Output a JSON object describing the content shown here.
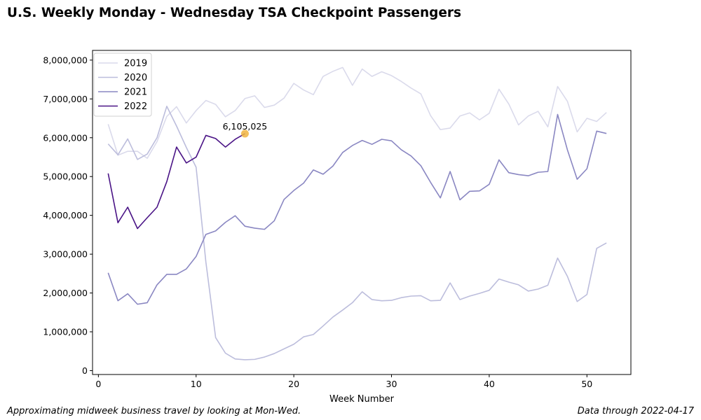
{
  "title": "U.S. Weekly Monday - Wednesday TSA Checkpoint Passengers",
  "footer": {
    "left": "Approximating midweek business travel by looking at Mon-Wed.",
    "right": "Data through 2022-04-17"
  },
  "chart_data": {
    "type": "line",
    "title": "U.S. Weekly Monday - Wednesday TSA Checkpoint Passengers",
    "xlabel": "Week Number",
    "ylabel": "",
    "xlim": [
      -0.6,
      54.5
    ],
    "ylim": [
      -100000,
      8250000
    ],
    "x_ticks": [
      0,
      10,
      20,
      30,
      40,
      50
    ],
    "x_tick_labels": [
      "0",
      "10",
      "20",
      "30",
      "40",
      "50"
    ],
    "y_ticks": [
      0,
      1000000,
      2000000,
      3000000,
      4000000,
      5000000,
      6000000,
      7000000,
      8000000
    ],
    "y_tick_labels": [
      "0",
      "1,000,000",
      "2,000,000",
      "3,000,000",
      "4,000,000",
      "5,000,000",
      "6,000,000",
      "7,000,000",
      "8,000,000"
    ],
    "grid": false,
    "legend_position": "top-left",
    "series": [
      {
        "name": "2019",
        "color": "#dadaeb",
        "x": [
          1,
          2,
          3,
          4,
          5,
          6,
          7,
          8,
          9,
          10,
          11,
          12,
          13,
          14,
          15,
          16,
          17,
          18,
          19,
          20,
          21,
          22,
          23,
          24,
          25,
          26,
          27,
          28,
          29,
          30,
          31,
          32,
          33,
          34,
          35,
          36,
          37,
          38,
          39,
          40,
          41,
          42,
          43,
          44,
          45,
          46,
          47,
          48,
          49,
          50,
          51,
          52
        ],
        "values": [
          6350000,
          5550000,
          5650000,
          5650000,
          5470000,
          5900000,
          6550000,
          6800000,
          6380000,
          6700000,
          6960000,
          6860000,
          6540000,
          6700000,
          7010000,
          7080000,
          6780000,
          6840000,
          7020000,
          7400000,
          7230000,
          7110000,
          7580000,
          7710000,
          7810000,
          7350000,
          7770000,
          7580000,
          7700000,
          7600000,
          7450000,
          7280000,
          7130000,
          6570000,
          6210000,
          6250000,
          6560000,
          6640000,
          6460000,
          6630000,
          7250000,
          6870000,
          6330000,
          6560000,
          6680000,
          6280000,
          7320000,
          6940000,
          6150000,
          6500000,
          6420000,
          6650000
        ]
      },
      {
        "name": "2020",
        "color": "#bcbddc",
        "x": [
          1,
          2,
          3,
          4,
          5,
          6,
          7,
          8,
          9,
          10,
          11,
          12,
          13,
          14,
          15,
          16,
          17,
          18,
          19,
          20,
          21,
          22,
          23,
          24,
          25,
          26,
          27,
          28,
          29,
          30,
          31,
          32,
          33,
          34,
          35,
          36,
          37,
          38,
          39,
          40,
          41,
          42,
          43,
          44,
          45,
          46,
          47,
          48,
          49,
          50,
          51,
          52
        ],
        "values": [
          5840000,
          5560000,
          5970000,
          5440000,
          5580000,
          6000000,
          6810000,
          6300000,
          5750000,
          5240000,
          2800000,
          850000,
          450000,
          300000,
          280000,
          290000,
          350000,
          440000,
          560000,
          680000,
          870000,
          930000,
          1150000,
          1380000,
          1560000,
          1750000,
          2030000,
          1830000,
          1800000,
          1810000,
          1880000,
          1920000,
          1930000,
          1800000,
          1810000,
          2260000,
          1830000,
          1920000,
          1990000,
          2070000,
          2360000,
          2280000,
          2210000,
          2050000,
          2100000,
          2200000,
          2900000,
          2430000,
          1780000,
          1960000,
          3150000,
          3290000
        ]
      },
      {
        "name": "2021",
        "color": "#8a87c2",
        "x": [
          1,
          2,
          3,
          4,
          5,
          6,
          7,
          8,
          9,
          10,
          11,
          12,
          13,
          14,
          15,
          16,
          17,
          18,
          19,
          20,
          21,
          22,
          23,
          24,
          25,
          26,
          27,
          28,
          29,
          30,
          31,
          32,
          33,
          34,
          35,
          36,
          37,
          38,
          39,
          40,
          41,
          42,
          43,
          44,
          45,
          46,
          47,
          48,
          49,
          50,
          51,
          52
        ],
        "values": [
          2520000,
          1800000,
          1980000,
          1710000,
          1750000,
          2210000,
          2480000,
          2480000,
          2620000,
          2940000,
          3510000,
          3600000,
          3820000,
          3990000,
          3720000,
          3670000,
          3640000,
          3860000,
          4410000,
          4640000,
          4830000,
          5170000,
          5060000,
          5270000,
          5620000,
          5800000,
          5930000,
          5830000,
          5960000,
          5920000,
          5690000,
          5530000,
          5280000,
          4850000,
          4450000,
          5130000,
          4400000,
          4620000,
          4630000,
          4800000,
          5430000,
          5100000,
          5050000,
          5020000,
          5110000,
          5130000,
          6600000,
          5690000,
          4930000,
          5200000,
          6170000,
          6110000
        ]
      },
      {
        "name": "2022",
        "color": "#4a1486",
        "x": [
          1,
          2,
          3,
          4,
          5,
          6,
          7,
          8,
          9,
          10,
          11,
          12,
          13,
          14,
          15
        ],
        "values": [
          5080000,
          3810000,
          4210000,
          3660000,
          3940000,
          4210000,
          4870000,
          5760000,
          5350000,
          5500000,
          6060000,
          5980000,
          5760000,
          5960000,
          6105025
        ]
      }
    ],
    "annotations": [
      {
        "x": 15,
        "y": 6105025,
        "text": "6,105,025",
        "marker_color": "#f0b440"
      }
    ]
  }
}
